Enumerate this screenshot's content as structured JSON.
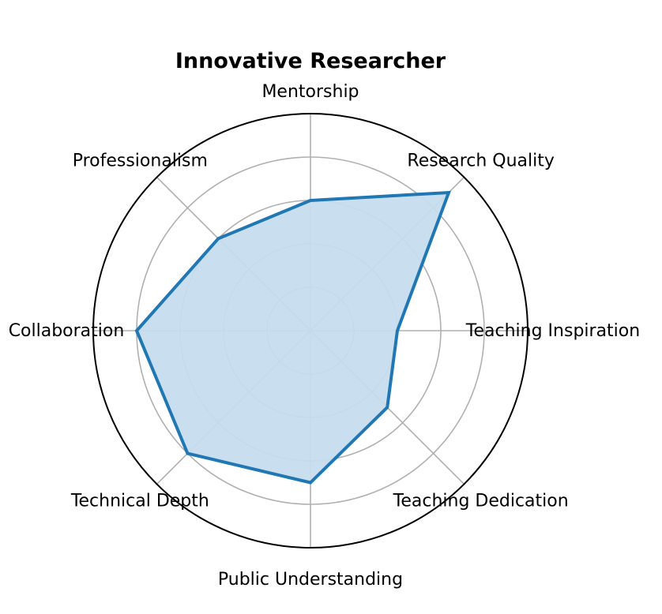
{
  "chart_data": {
    "type": "radar",
    "title": "Innovative Researcher",
    "categories": [
      "Mentorship",
      "Research Quality",
      "Teaching Inspiration",
      "Teaching Dedication",
      "Public Understanding",
      "Technical Depth",
      "Collaboration",
      "Professionalism"
    ],
    "series": [
      {
        "values": [
          3,
          4.5,
          2,
          2.5,
          3.5,
          4,
          4,
          3
        ]
      }
    ],
    "rlim": [
      0,
      5
    ],
    "grid": true,
    "colors": {
      "line": "#1f77b4",
      "fill": "#c6dcee"
    }
  }
}
